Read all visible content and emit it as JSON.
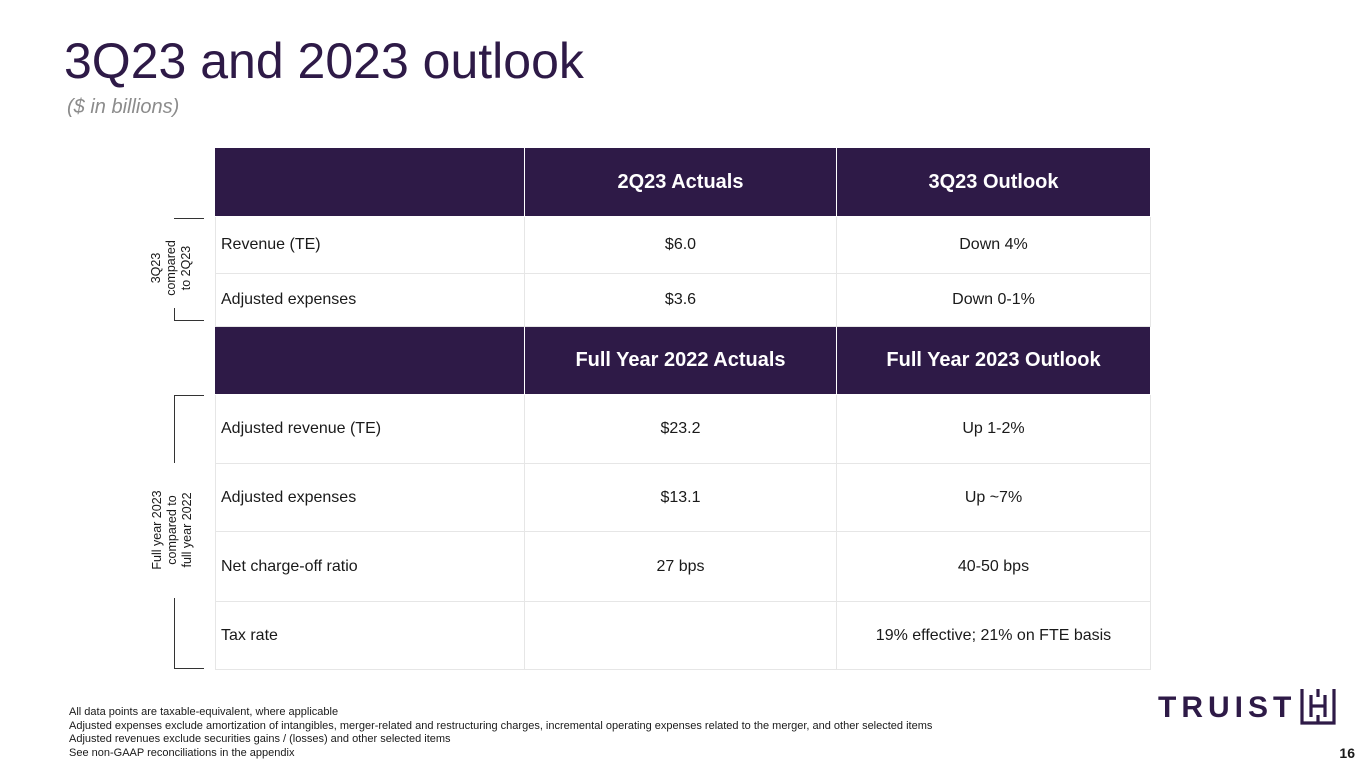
{
  "header": {
    "title": "3Q23 and 2023 outlook",
    "subtitle": "($ in billions)"
  },
  "quarter_section": {
    "side_label_lines": [
      "3Q23",
      "compared",
      "to 2Q23"
    ],
    "columns": [
      "",
      "2Q23 Actuals",
      "3Q23 Outlook"
    ],
    "rows": [
      {
        "label": "Revenue (TE)",
        "actual": "$6.0",
        "outlook": "Down 4%"
      },
      {
        "label": "Adjusted expenses",
        "actual": "$3.6",
        "outlook": "Down 0-1%"
      }
    ]
  },
  "year_section": {
    "side_label_lines": [
      "Full year 2023",
      "compared to",
      "full year 2022"
    ],
    "columns": [
      "",
      "Full Year 2022 Actuals",
      "Full Year 2023 Outlook"
    ],
    "rows": [
      {
        "label": "Adjusted revenue (TE)",
        "actual": "$23.2",
        "outlook": "Up 1-2%"
      },
      {
        "label": "Adjusted expenses",
        "actual": "$13.1",
        "outlook": "Up ~7%"
      },
      {
        "label": "Net charge-off ratio",
        "actual": "27 bps",
        "outlook": "40-50 bps"
      },
      {
        "label": "Tax rate",
        "actual": "",
        "outlook": "19% effective; 21% on FTE basis"
      }
    ]
  },
  "footnotes": [
    "All data points are taxable-equivalent, where applicable",
    "Adjusted expenses exclude amortization of intangibles, merger-related and restructuring charges, incremental operating expenses related to the merger, and other selected items",
    "Adjusted revenues exclude securities gains / (losses) and other selected items",
    "See non-GAAP reconciliations in the appendix"
  ],
  "logo": {
    "text": "TRUIST",
    "icon": "truist-mark-icon",
    "color": "#2e1a47"
  },
  "page_number": "16",
  "colors": {
    "brand": "#2e1a47",
    "subtitle": "#8c8c8c"
  }
}
